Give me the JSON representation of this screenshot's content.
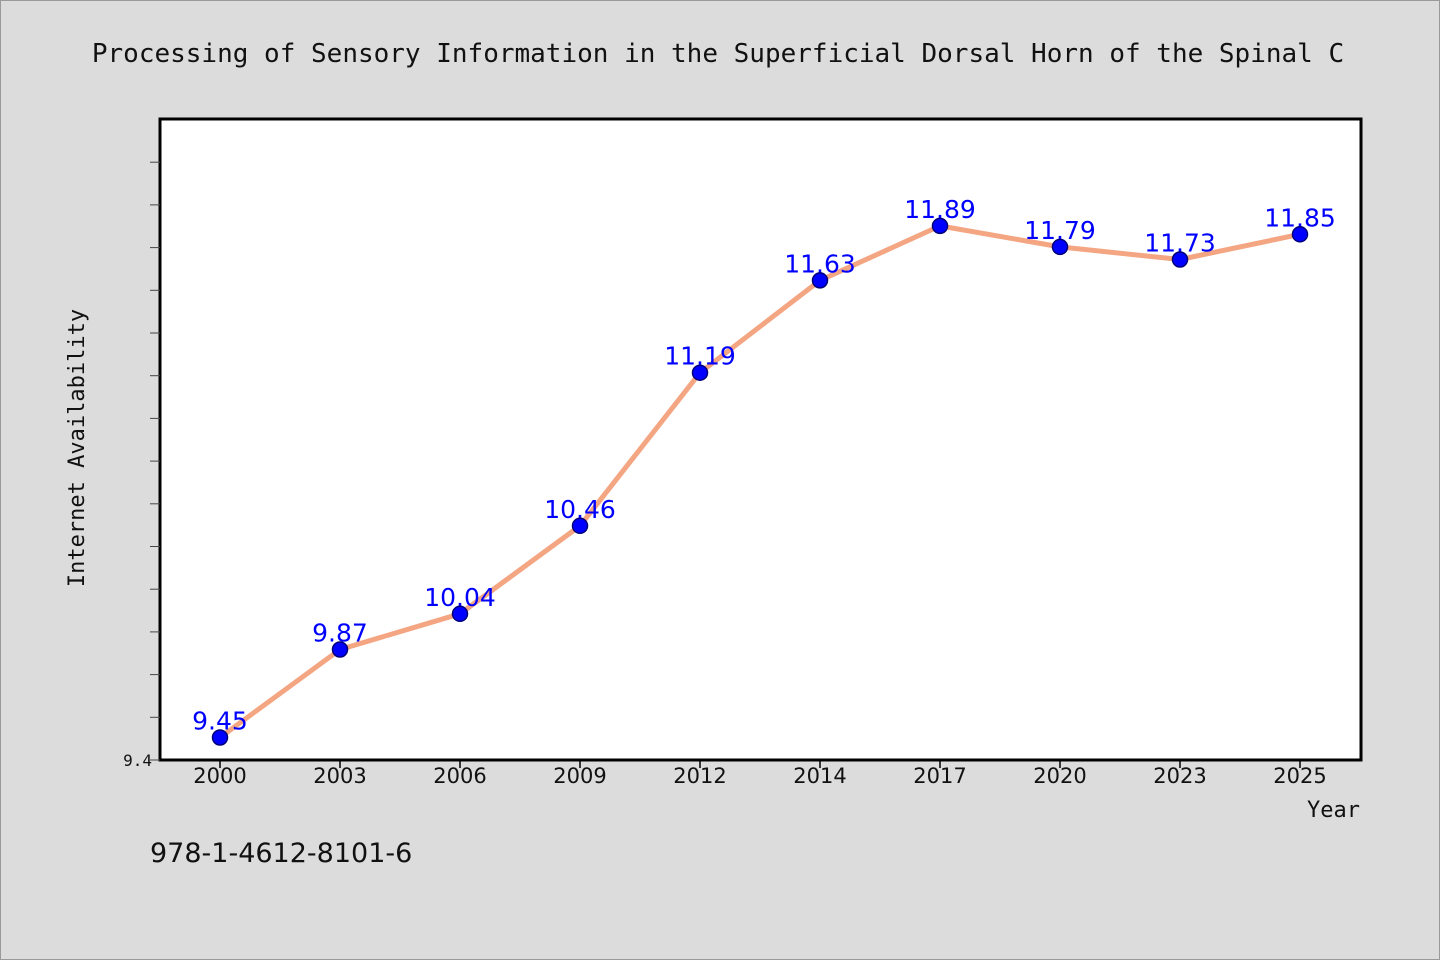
{
  "chart_data": {
    "type": "line",
    "title": "Processing of Sensory Information in the Superficial Dorsal Horn of the Spinal C",
    "xlabel": "Year",
    "ylabel": "Internet Availability",
    "categories": [
      "2000",
      "2003",
      "2006",
      "2009",
      "2012",
      "2014",
      "2017",
      "2020",
      "2023",
      "2025"
    ],
    "series": [
      {
        "values": [
          9.45,
          9.87,
          10.04,
          10.46,
          11.19,
          11.63,
          11.89,
          11.79,
          11.73,
          11.85
        ],
        "data_labels": [
          "9.45",
          "9.87",
          "10.04",
          "10.46",
          "11.19",
          "11.63",
          "11.89",
          "11.79",
          "11.73",
          "11.85"
        ]
      }
    ],
    "ylim": [
      9.4,
      12.4
    ],
    "y_tick_labels": [
      "9.4"
    ],
    "grid": false,
    "line_color": "#f4a582",
    "marker_color": "#0000ff",
    "label_color": "#0000ff"
  },
  "footer": {
    "text": "978-1-4612-8101-6"
  }
}
